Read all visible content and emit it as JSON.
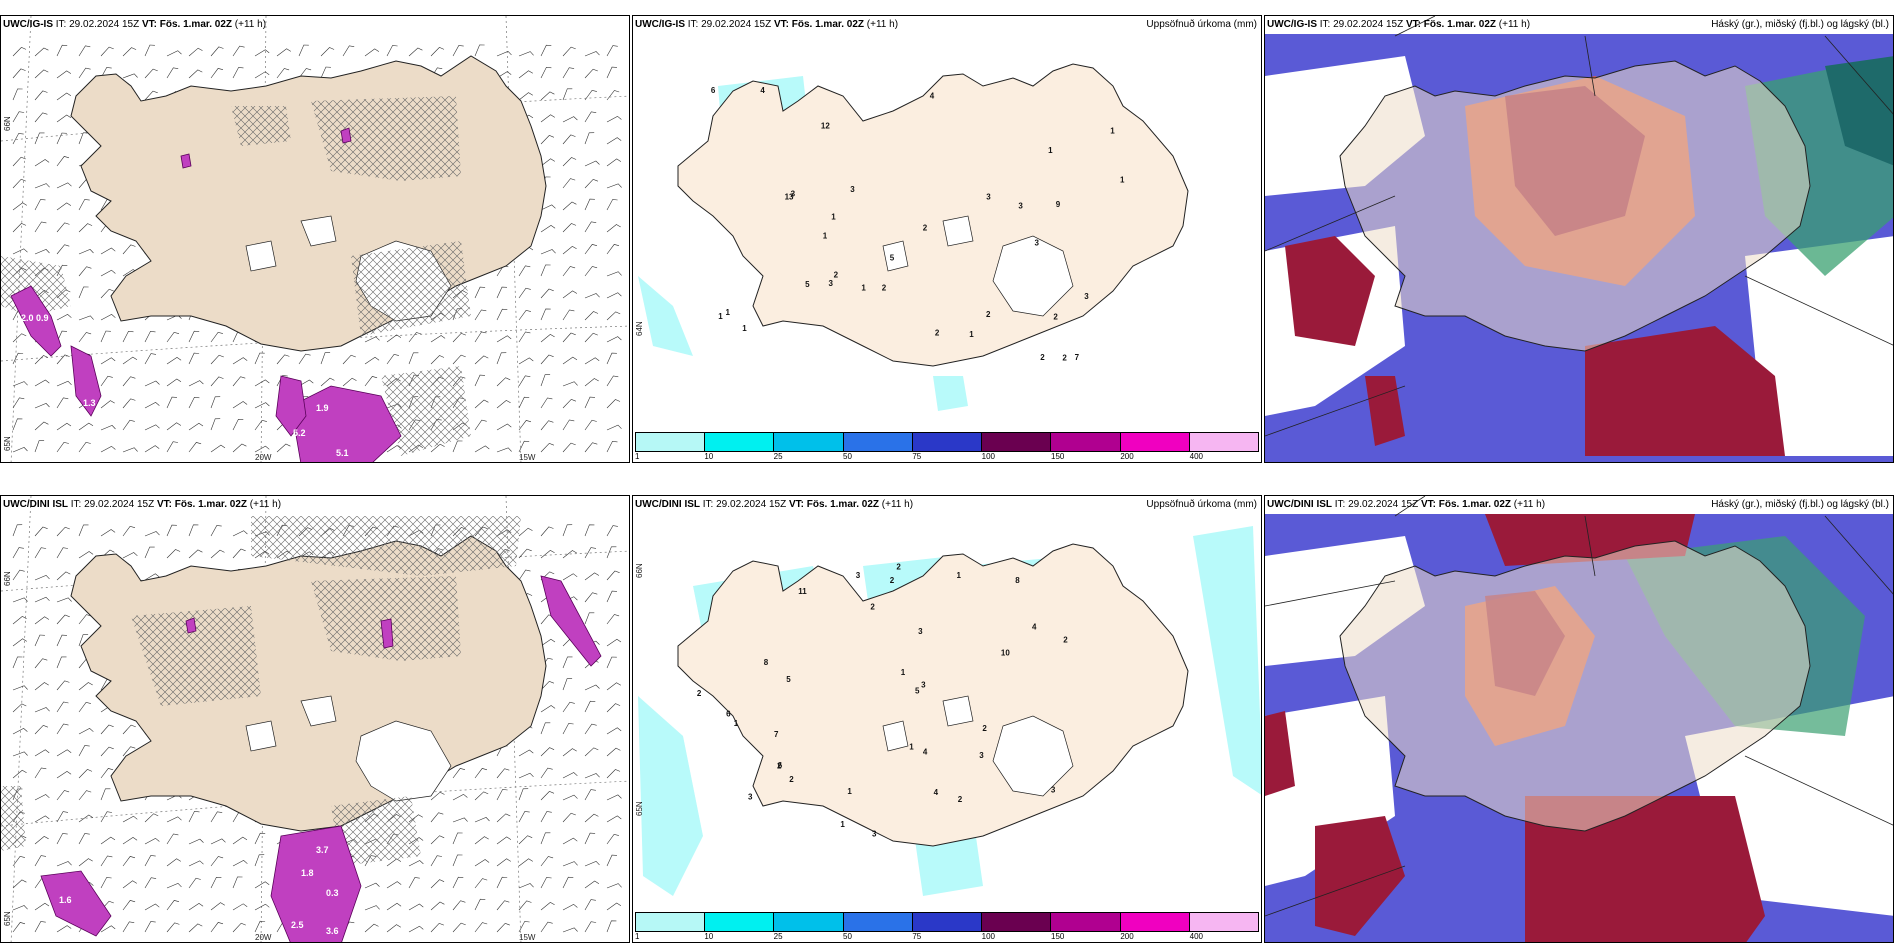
{
  "palette": {
    "land": "#ecdcc8",
    "land_light": "#fbeee0",
    "cyan": "#b8fafa",
    "magenta": "#c040c0",
    "cloud_blue": "#5a5ad6",
    "cloud_red": "#9a1a3a",
    "cloud_orange": "#e06040",
    "cloud_green": "#3aa070"
  },
  "colorbar": {
    "colors": [
      "#b6f8f6",
      "#00f0f0",
      "#00c0ea",
      "#2a72e8",
      "#2a38c8",
      "#6a0050",
      "#b00090",
      "#f000c0",
      "#f6b6f2"
    ],
    "labels": [
      "1",
      "10",
      "25",
      "50",
      "75",
      "100",
      "150",
      "200",
      "400"
    ]
  },
  "rows": [
    {
      "model": "UWC/IG-IS",
      "it_label": "IT:",
      "it_value": "29.02.2024 15Z",
      "vt_label": "VT:",
      "vt_value": "Fös. 1.mar. 02Z",
      "lead": "(+11 h)",
      "precip_title": "Uppsöfnuð úrkoma (mm)",
      "cloud_title": "Háský (gr.), miðský (fj.bl.) og lágský (bl.)",
      "wind_labels": {
        "lat66": "66N",
        "lat65": "65N",
        "lon20": "20W",
        "lon15": "15W"
      },
      "precip_labels": {
        "lat64": "64N"
      },
      "wind_values": [
        "2.0",
        "0.9",
        "1.3",
        "5.2",
        "5.1",
        "1.9"
      ],
      "precip_values": [
        "5",
        "13",
        "4",
        "3",
        "7",
        "12",
        "2",
        "1",
        "3",
        "3",
        "9",
        "4",
        "6",
        "2",
        "1",
        "2",
        "2",
        "1",
        "1",
        "3",
        "2",
        "3",
        "1",
        "5",
        "2",
        "3",
        "2",
        "1",
        "1",
        "1",
        "2",
        "1",
        "1",
        "3"
      ]
    },
    {
      "model": "UWC/DINI ISL",
      "it_label": "IT:",
      "it_value": "29.02.2024 15Z",
      "vt_label": "VT:",
      "vt_value": "Fös. 1.mar. 02Z",
      "lead": "(+11 h)",
      "precip_title": "Uppsöfnuð úrkoma (mm)",
      "cloud_title": "Háský (gr.), miðský (fj.bl.) og lágský (bl.)",
      "wind_labels": {
        "lat66": "66N",
        "lat65": "65N",
        "lon20": "20W",
        "lon15": "15W"
      },
      "precip_labels": {
        "lat66": "66N",
        "lat65": "65N"
      },
      "wind_values": [
        "1.6",
        "2.5",
        "3.6",
        "3.7",
        "0.3",
        "1.8"
      ],
      "precip_values": [
        "3",
        "8",
        "11",
        "4",
        "4",
        "5",
        "7",
        "6",
        "2",
        "10",
        "6",
        "2",
        "3",
        "5",
        "3",
        "3",
        "3",
        "2",
        "2",
        "1",
        "2",
        "2",
        "2",
        "3",
        "1",
        "1",
        "1",
        "1",
        "3",
        "2",
        "8",
        "2",
        "4",
        "1"
      ]
    }
  ]
}
